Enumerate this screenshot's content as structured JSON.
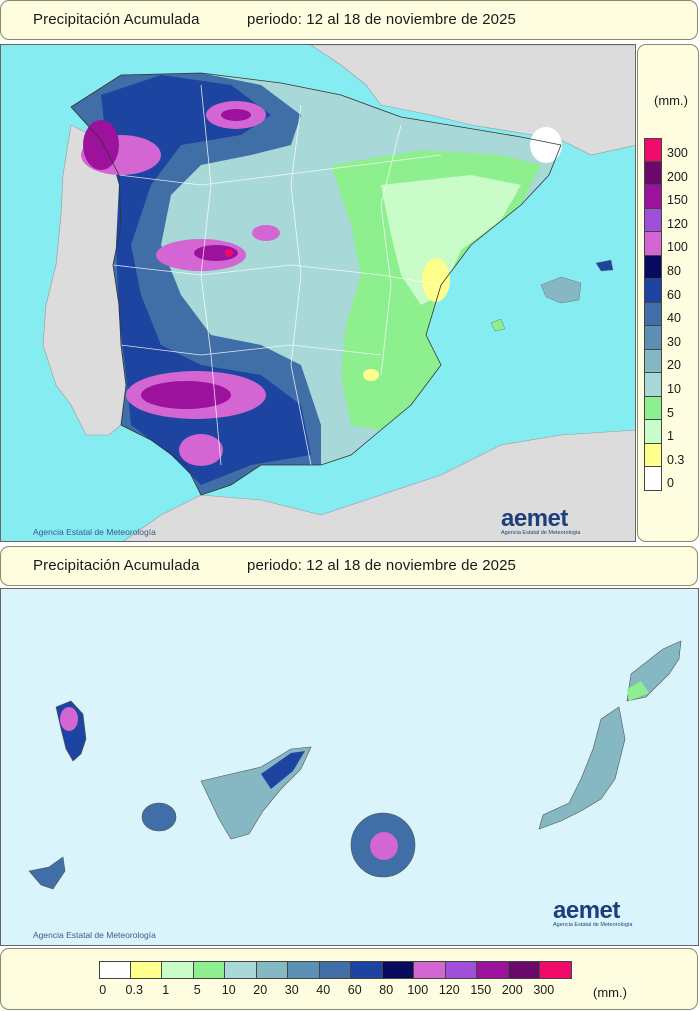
{
  "top_banner": {
    "title": "Precipitación Acumulada",
    "period": "periodo: 12 al 18 de noviembre de 2025"
  },
  "bottom_banner": {
    "title": "Precipitación Acumulada",
    "period": "periodo: 12 al 18 de noviembre de 2025"
  },
  "peninsula_map": {
    "credit": "Agencia Estatal de Meteorología",
    "logo_text": "aemet",
    "logo_sub": "Agencia Estatal de Meteorología"
  },
  "canarias_map": {
    "credit": "Agencia Estatal de Meteorología",
    "logo_text": "aemet",
    "logo_sub": "Agencia Estatal de Meteorología"
  },
  "legend": {
    "unit": "(mm.)",
    "levels": [
      "0",
      "0.3",
      "1",
      "5",
      "10",
      "20",
      "30",
      "40",
      "60",
      "80",
      "100",
      "120",
      "150",
      "200",
      "300"
    ],
    "colors": [
      "#ffffff",
      "#feff8c",
      "#c9fcc9",
      "#8eef8e",
      "#a8d8d8",
      "#86b8c4",
      "#5c8fb4",
      "#3f6fa6",
      "#1d44a0",
      "#0a0a5e",
      "#d366d3",
      "#a050d8",
      "#9c129c",
      "#6b0a6b",
      "#f00a6a"
    ]
  },
  "colors": {
    "sea": "#85ecf2",
    "land_other": "#dcdcdc",
    "panel_bg": "#fffddf"
  }
}
